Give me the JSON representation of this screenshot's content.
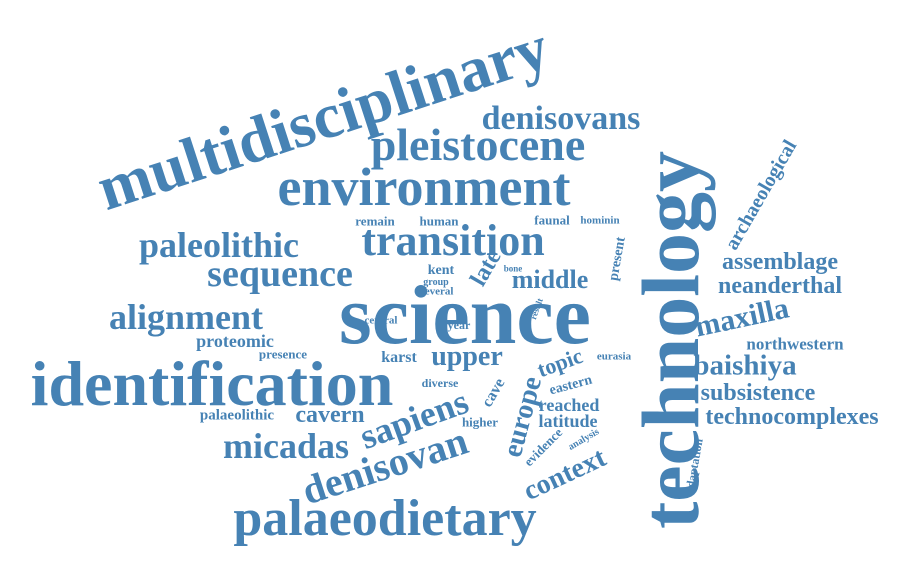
{
  "cloud": {
    "color": "#4682b4",
    "words": [
      "multidisciplinary",
      "environment",
      "pleistocene",
      "denisovans",
      "technology",
      "archaeological",
      "transition",
      "paleolithic",
      "remain",
      "human",
      "faunal",
      "hominin",
      "present",
      "sequence",
      "kent",
      "late",
      "bone",
      "group",
      "several",
      "middle",
      "assemblage",
      "neanderthal",
      "alignment",
      "science",
      "central",
      "year",
      "result",
      "maxilla",
      "proteomic",
      "northwestern",
      "presence",
      "karst",
      "upper",
      "topic",
      "eurasia",
      "baishiya",
      "identification",
      "diverse",
      "cave",
      "eastern",
      "subsistence",
      "europe",
      "reached",
      "palaeolithic",
      "cavern",
      "higher",
      "latitude",
      "technocomplexes",
      "sapiens",
      "analysis",
      "micadas",
      "evidence",
      "context",
      "adaptation",
      "denisovan",
      "palaeodietary"
    ]
  }
}
